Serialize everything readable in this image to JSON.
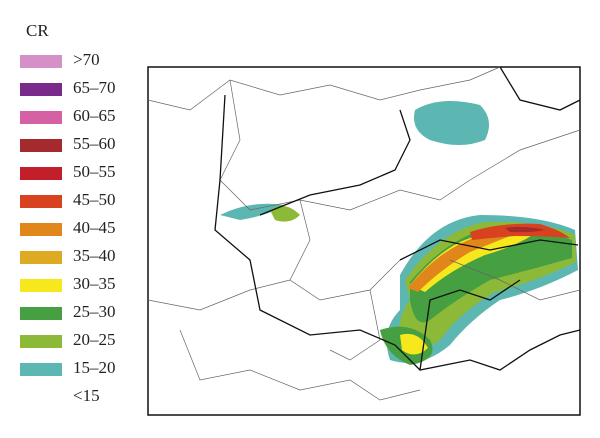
{
  "legend": {
    "title": "CR",
    "items": [
      {
        "label": ">70",
        "color": "#d690c8"
      },
      {
        "label": "65–70",
        "color": "#7a2a8a"
      },
      {
        "label": "60–65",
        "color": "#d660a4"
      },
      {
        "label": "55–60",
        "color": "#a52a2e"
      },
      {
        "label": "50–55",
        "color": "#c21f2a"
      },
      {
        "label": "45–50",
        "color": "#d9421e"
      },
      {
        "label": "40–45",
        "color": "#e0861a"
      },
      {
        "label": "35–40",
        "color": "#deaa24"
      },
      {
        "label": "30–35",
        "color": "#f7e81e"
      },
      {
        "label": "25–30",
        "color": "#46a042"
      },
      {
        "label": "20–25",
        "color": "#8cba38"
      },
      {
        "label": "15–20",
        "color": "#5cb6b2"
      },
      {
        "label": "<15"
      }
    ]
  }
}
